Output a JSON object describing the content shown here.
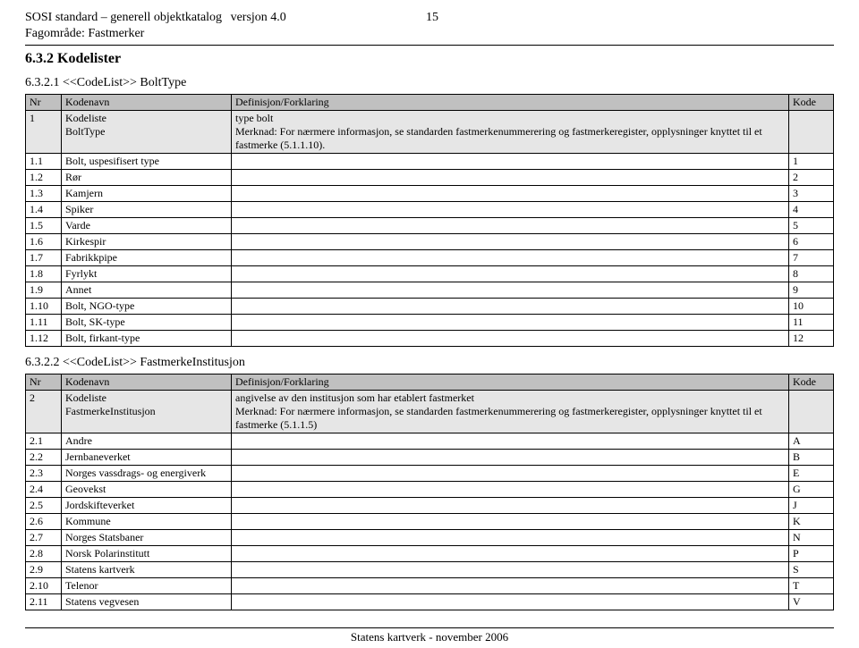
{
  "header": {
    "line1_left": "SOSI standard – generell objektkatalog",
    "line1_vers": "versjon 4.0",
    "page_number": "15",
    "line2": "Fagområde: Fastmerker"
  },
  "section_main": "6.3.2   Kodelister",
  "table1": {
    "heading": "6.3.2.1    <<CodeList>> BoltType",
    "head": {
      "nr": "Nr",
      "name": "Kodenavn",
      "def": "Definisjon/Forklaring",
      "kode": "Kode"
    },
    "shade": {
      "nr": "1",
      "name_a": "Kodeliste",
      "name_b": "BoltType",
      "def_a": "type bolt",
      "def_b": "Merknad: For nærmere informasjon, se standarden fastmerkenummerering og fastmerkeregister, opplysninger knyttet til et fastmerke (5.1.1.10).",
      "kode": ""
    },
    "rows": [
      {
        "nr": "1.1",
        "name": "Bolt, uspesifisert type",
        "def": "",
        "kode": "1"
      },
      {
        "nr": "1.2",
        "name": "Rør",
        "def": "",
        "kode": "2"
      },
      {
        "nr": "1.3",
        "name": "Kamjern",
        "def": "",
        "kode": "3"
      },
      {
        "nr": "1.4",
        "name": "Spiker",
        "def": "",
        "kode": "4"
      },
      {
        "nr": "1.5",
        "name": "Varde",
        "def": "",
        "kode": "5"
      },
      {
        "nr": "1.6",
        "name": "Kirkespir",
        "def": "",
        "kode": "6"
      },
      {
        "nr": "1.7",
        "name": "Fabrikkpipe",
        "def": "",
        "kode": "7"
      },
      {
        "nr": "1.8",
        "name": "Fyrlykt",
        "def": "",
        "kode": "8"
      },
      {
        "nr": "1.9",
        "name": "Annet",
        "def": "",
        "kode": "9"
      },
      {
        "nr": "1.10",
        "name": "Bolt, NGO-type",
        "def": "",
        "kode": "10"
      },
      {
        "nr": "1.11",
        "name": "Bolt, SK-type",
        "def": "",
        "kode": "11"
      },
      {
        "nr": "1.12",
        "name": "Bolt, firkant-type",
        "def": "",
        "kode": "12"
      }
    ]
  },
  "table2": {
    "heading": "6.3.2.2    <<CodeList>> FastmerkeInstitusjon",
    "head": {
      "nr": "Nr",
      "name": "Kodenavn",
      "def": "Definisjon/Forklaring",
      "kode": "Kode"
    },
    "shade": {
      "nr": "2",
      "name_a": "Kodeliste",
      "name_b": "FastmerkeInstitusjon",
      "def_a": "angivelse av den institusjon som har etablert fastmerket",
      "def_b": "Merknad: For nærmere informasjon, se standarden fastmerkenummerering og fastmerkeregister, opplysninger knyttet til et fastmerke (5.1.1.5)",
      "kode": ""
    },
    "rows": [
      {
        "nr": "2.1",
        "name": "Andre",
        "def": "",
        "kode": "A"
      },
      {
        "nr": "2.2",
        "name": "Jernbaneverket",
        "def": "",
        "kode": "B"
      },
      {
        "nr": "2.3",
        "name": "Norges vassdrags- og energiverk",
        "def": "",
        "kode": "E"
      },
      {
        "nr": "2.4",
        "name": "Geovekst",
        "def": "",
        "kode": "G"
      },
      {
        "nr": "2.5",
        "name": "Jordskifteverket",
        "def": "",
        "kode": "J"
      },
      {
        "nr": "2.6",
        "name": "Kommune",
        "def": "",
        "kode": "K"
      },
      {
        "nr": "2.7",
        "name": "Norges Statsbaner",
        "def": "",
        "kode": "N"
      },
      {
        "nr": "2.8",
        "name": "Norsk Polarinstitutt",
        "def": "",
        "kode": "P"
      },
      {
        "nr": "2.9",
        "name": "Statens kartverk",
        "def": "",
        "kode": "S"
      },
      {
        "nr": "2.10",
        "name": "Telenor",
        "def": "",
        "kode": "T"
      },
      {
        "nr": "2.11",
        "name": "Statens vegvesen",
        "def": "",
        "kode": "V"
      }
    ]
  },
  "footer": "Statens kartverk - november 2006"
}
